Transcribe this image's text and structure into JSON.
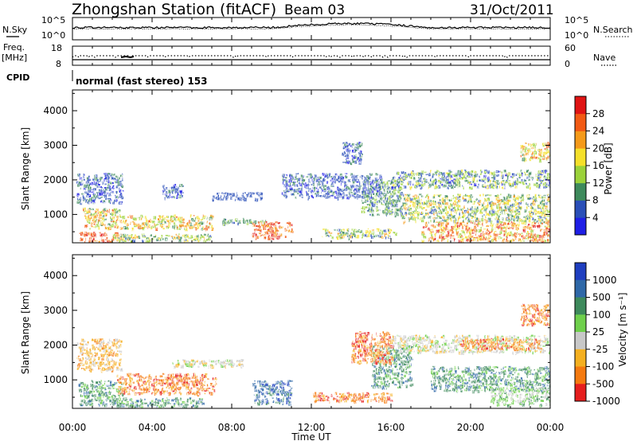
{
  "header": {
    "title": "Zhongshan Station (fitACF)",
    "beam": "Beam 03",
    "date": "31/Oct/2011"
  },
  "top_strip": {
    "left_label": "N.Sky",
    "right_label": "N.Search",
    "left_ticks": [
      "10^5",
      "10^0"
    ],
    "right_ticks": [
      "10^5",
      "10^0"
    ]
  },
  "freq_strip": {
    "left_label_1": "Freq.",
    "left_label_2": "[MHz]",
    "left_ticks": [
      "18",
      "8"
    ],
    "right_label": "Nave",
    "right_ticks": [
      "60",
      "0"
    ]
  },
  "cpid": {
    "label": "CPID",
    "text": "normal (fast stereo) 153"
  },
  "chart_data": [
    {
      "type": "heatmap",
      "name": "power",
      "ylabel": "Slant Range [km]",
      "ylim": [
        180,
        4600
      ],
      "yticks": [
        "1000",
        "2000",
        "3000",
        "4000"
      ],
      "colorbar": {
        "label": "Power [dB]",
        "ticks": [
          "4",
          "8",
          "12",
          "16",
          "20",
          "24",
          "28"
        ],
        "colors": [
          "#1f1fe6",
          "#2a4fb8",
          "#3e8a5c",
          "#9bd23a",
          "#f5e02a",
          "#f59a1a",
          "#f25a14",
          "#e01414"
        ]
      }
    },
    {
      "type": "heatmap",
      "name": "velocity",
      "ylabel": "Slant Range [km]",
      "ylim": [
        180,
        4600
      ],
      "yticks": [
        "1000",
        "2000",
        "3000",
        "4000"
      ],
      "colorbar": {
        "label": "Velocity [m s⁻¹]",
        "ticks": [
          "1000",
          "500",
          "100",
          "25",
          "-25",
          "-100",
          "-500",
          "-1000"
        ],
        "colors": [
          "#1f3fc0",
          "#2f68a8",
          "#3e8a5c",
          "#6fd04c",
          "#c8c8c8",
          "#f5b020",
          "#f57a10",
          "#e61e1e"
        ]
      }
    }
  ],
  "xaxis": {
    "label": "Time UT",
    "ticks": [
      "00:00",
      "04:00",
      "08:00",
      "12:00",
      "16:00",
      "20:00",
      "00:00"
    ]
  }
}
